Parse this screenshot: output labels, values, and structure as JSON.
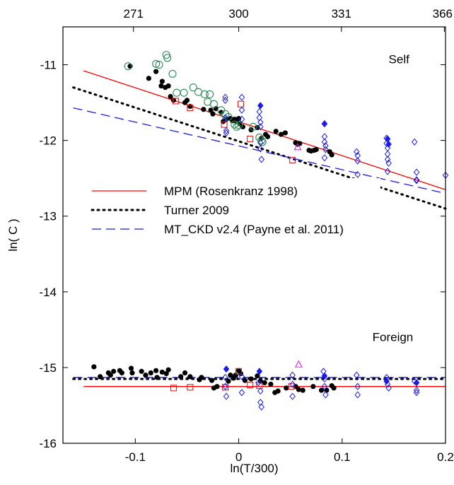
{
  "chart_data": {
    "type": "scatter",
    "xlabel": "ln(T/300)",
    "ylabel": "ln( C )",
    "xlim": [
      -0.17,
      0.2
    ],
    "ylim": [
      -16,
      -10.5
    ],
    "x_ticks": [
      -0.1,
      0,
      0.1,
      0.2
    ],
    "x_tick_labels": [
      "-0.1",
      "0",
      "0.1",
      "0.2"
    ],
    "y_ticks": [
      -11,
      -12,
      -13,
      -14,
      -15,
      -16
    ],
    "y_tick_labels": [
      "-11",
      "-12",
      "-13",
      "-14",
      "-15",
      "-16"
    ],
    "top_ticks": [
      -0.1018,
      0,
      0.0993,
      0.1989
    ],
    "top_tick_labels": [
      "271",
      "300",
      "331",
      "366"
    ],
    "annotations": [
      {
        "text": "Self",
        "x": 0.155,
        "y": -10.98
      },
      {
        "text": "Foreign",
        "x": 0.149,
        "y": -14.65
      }
    ],
    "legend_position": "middle-left",
    "grid": false,
    "colors": {
      "mpm": "#ff0000",
      "turner": "#000000",
      "mtckd": "#1a1aee",
      "green": "#2e8b57",
      "magenta": "#e020e0"
    },
    "lines": [
      {
        "name": "MPM (Rosenkranz 1998)",
        "style": "solid",
        "color": "#ff0000",
        "segments": [
          {
            "x": [
              -0.15,
              0.2
            ],
            "y": [
              -11.08,
              -12.65
            ]
          },
          {
            "x": [
              -0.15,
              0.2
            ],
            "y": [
              -15.25,
              -15.25
            ]
          }
        ]
      },
      {
        "name": "Turner 2009",
        "style": "dotted",
        "color": "#000000",
        "segments": [
          {
            "x": [
              -0.16,
              0.2
            ],
            "y": [
              -11.3,
              -12.9
            ]
          },
          {
            "x": [
              -0.16,
              0.2
            ],
            "y": [
              -15.15,
              -15.15
            ]
          }
        ]
      },
      {
        "name": "MT_CKD v2.4 (Payne et al. 2011)",
        "style": "dashed",
        "color": "#1a1aee",
        "segments": [
          {
            "x": [
              -0.16,
              0.2
            ],
            "y": [
              -11.57,
              -12.7
            ]
          },
          {
            "x": [
              -0.16,
              0.2
            ],
            "y": [
              -15.13,
              -15.13
            ]
          }
        ]
      }
    ],
    "series": [
      {
        "marker": "filled-circle",
        "color": "#000000",
        "points": [
          [
            -0.105,
            -11.02
          ],
          [
            -0.087,
            -11.18
          ],
          [
            -0.08,
            -11.09
          ],
          [
            -0.075,
            -11.28
          ],
          [
            -0.074,
            -11.22
          ],
          [
            -0.071,
            -11.3
          ],
          [
            -0.068,
            -11.28
          ],
          [
            -0.066,
            -11.42
          ],
          [
            -0.063,
            -11.47
          ],
          [
            -0.052,
            -11.5
          ],
          [
            -0.05,
            -11.47
          ],
          [
            -0.047,
            -11.55
          ],
          [
            -0.034,
            -11.59
          ],
          [
            -0.027,
            -11.6
          ],
          [
            -0.025,
            -11.65
          ],
          [
            -0.022,
            -11.58
          ],
          [
            -0.017,
            -11.63
          ],
          [
            -0.015,
            -11.75
          ],
          [
            -0.012,
            -11.72
          ],
          [
            -0.008,
            -11.71
          ],
          [
            -0.006,
            -11.74
          ],
          [
            -0.004,
            -11.72
          ],
          [
            -0.002,
            -11.75
          ],
          [
            0.0,
            -11.71
          ],
          [
            0.001,
            -11.78
          ],
          [
            0.004,
            -11.82
          ],
          [
            0.012,
            -11.86
          ],
          [
            0.018,
            -11.83
          ],
          [
            0.022,
            -11.97
          ],
          [
            0.026,
            -11.92
          ],
          [
            0.028,
            -11.95
          ],
          [
            0.036,
            -11.88
          ],
          [
            0.041,
            -11.92
          ],
          [
            0.045,
            -11.9
          ],
          [
            0.055,
            -12.03
          ],
          [
            0.057,
            -12.05
          ],
          [
            0.059,
            -12.04
          ],
          [
            0.068,
            -12.13
          ],
          [
            0.07,
            -12.14
          ],
          [
            0.073,
            -12.13
          ],
          [
            0.075,
            -12.12
          ],
          [
            0.088,
            -12.15
          ],
          [
            0.09,
            -12.19
          ],
          [
            -0.14,
            -14.99
          ],
          [
            -0.134,
            -15.12
          ],
          [
            -0.126,
            -15.07
          ],
          [
            -0.124,
            -15.1
          ],
          [
            -0.121,
            -15.05
          ],
          [
            -0.115,
            -15.04
          ],
          [
            -0.113,
            -15.07
          ],
          [
            -0.104,
            -15.01
          ],
          [
            -0.103,
            -15.07
          ],
          [
            -0.094,
            -15.05
          ],
          [
            -0.09,
            -15.1
          ],
          [
            -0.085,
            -15.07
          ],
          [
            -0.08,
            -15.04
          ],
          [
            -0.079,
            -15.13
          ],
          [
            -0.074,
            -15.06
          ],
          [
            -0.07,
            -15.08
          ],
          [
            -0.068,
            -15.03
          ],
          [
            -0.056,
            -15.12
          ],
          [
            -0.052,
            -15.07
          ],
          [
            -0.047,
            -15.12
          ],
          [
            -0.038,
            -15.16
          ],
          [
            -0.036,
            -15.13
          ],
          [
            -0.026,
            -15.17
          ],
          [
            -0.024,
            -15.27
          ],
          [
            -0.021,
            -15.25
          ],
          [
            -0.01,
            -15.18
          ],
          [
            -0.008,
            -15.1
          ],
          [
            -0.005,
            -15.14
          ],
          [
            -0.003,
            -15.1
          ],
          [
            0.0,
            -15.04
          ],
          [
            0.002,
            -15.08
          ],
          [
            0.006,
            -15.17
          ],
          [
            0.012,
            -15.15
          ],
          [
            0.018,
            -15.11
          ],
          [
            0.021,
            -15.18
          ],
          [
            0.025,
            -15.2
          ],
          [
            0.031,
            -15.22
          ],
          [
            0.035,
            -15.33
          ],
          [
            0.038,
            -15.31
          ],
          [
            0.046,
            -15.27
          ],
          [
            0.055,
            -15.25
          ],
          [
            0.058,
            -15.29
          ],
          [
            0.062,
            -15.3
          ],
          [
            0.072,
            -15.25
          ],
          [
            0.08,
            -15.3
          ],
          [
            0.085,
            -15.3
          ],
          [
            0.09,
            -15.24
          ],
          [
            0.092,
            -15.27
          ]
        ]
      },
      {
        "marker": "open-circle",
        "color": "#2e8b57",
        "points": [
          [
            -0.107,
            -11.02
          ],
          [
            -0.08,
            -10.99
          ],
          [
            -0.077,
            -11.0
          ],
          [
            -0.07,
            -10.87
          ],
          [
            -0.069,
            -10.91
          ],
          [
            -0.064,
            -11.12
          ],
          [
            -0.06,
            -11.37
          ],
          [
            -0.053,
            -11.37
          ],
          [
            -0.044,
            -11.3
          ],
          [
            -0.039,
            -11.36
          ],
          [
            -0.033,
            -11.39
          ],
          [
            -0.03,
            -11.49
          ],
          [
            -0.028,
            -11.39
          ],
          [
            -0.024,
            -11.52
          ],
          [
            -0.017,
            -11.6
          ],
          [
            -0.013,
            -11.65
          ],
          [
            -0.01,
            -11.69
          ],
          [
            -0.004,
            -11.79
          ],
          [
            -0.002,
            -11.82
          ],
          [
            0.0,
            -11.8
          ],
          [
            0.014,
            -11.82
          ],
          [
            0.02,
            -11.96
          ],
          [
            0.022,
            -12.0
          ],
          [
            0.023,
            -12.02
          ]
        ]
      },
      {
        "marker": "open-square",
        "color": "#e02020",
        "points": [
          [
            -0.061,
            -11.48
          ],
          [
            -0.047,
            -11.57
          ],
          [
            -0.014,
            -11.79
          ],
          [
            0.002,
            -11.52
          ],
          [
            0.011,
            -11.98
          ],
          [
            0.052,
            -12.26
          ],
          [
            -0.063,
            -15.27
          ],
          [
            -0.047,
            -15.26
          ],
          [
            -0.013,
            -15.26
          ],
          [
            0.0,
            -15.05
          ],
          [
            0.011,
            -15.23
          ],
          [
            0.02,
            -15.24
          ],
          [
            0.051,
            -15.25
          ]
        ]
      },
      {
        "marker": "open-triangle",
        "color": "#e020e0",
        "points": [
          [
            0.057,
            -12.09
          ],
          [
            0.058,
            -14.96
          ]
        ]
      },
      {
        "marker": "open-diamond",
        "color": "#1a1aee",
        "points": [
          [
            -0.013,
            -11.43
          ],
          [
            -0.013,
            -11.47
          ],
          [
            -0.013,
            -11.7
          ],
          [
            -0.012,
            -11.87
          ],
          [
            -0.012,
            -11.9
          ],
          [
            -0.013,
            -12.88
          ],
          [
            0.003,
            -11.43
          ],
          [
            0.003,
            -11.6
          ],
          [
            0.003,
            -11.72
          ],
          [
            0.02,
            -11.62
          ],
          [
            0.02,
            -11.7
          ],
          [
            0.021,
            -11.76
          ],
          [
            0.021,
            -11.82
          ],
          [
            0.021,
            -12.03
          ],
          [
            0.021,
            -12.11
          ],
          [
            0.022,
            -12.25
          ],
          [
            0.083,
            -11.78
          ],
          [
            0.083,
            -11.95
          ],
          [
            0.083,
            -12.02
          ],
          [
            0.084,
            -12.07
          ],
          [
            0.084,
            -12.12
          ],
          [
            0.083,
            -12.23
          ],
          [
            0.114,
            -12.15
          ],
          [
            0.115,
            -12.2
          ],
          [
            0.115,
            -12.27
          ],
          [
            0.115,
            -12.45
          ],
          [
            0.143,
            -11.97
          ],
          [
            0.143,
            -12.04
          ],
          [
            0.144,
            -12.1
          ],
          [
            0.144,
            -12.18
          ],
          [
            0.144,
            -12.25
          ],
          [
            0.145,
            -12.3
          ],
          [
            0.144,
            -12.41
          ],
          [
            0.17,
            -12.02
          ],
          [
            0.172,
            -12.42
          ],
          [
            0.172,
            -12.52
          ],
          [
            0.172,
            -12.53
          ],
          [
            0.2,
            -12.46
          ],
          [
            -0.013,
            -15.13
          ],
          [
            -0.013,
            -15.25
          ],
          [
            -0.012,
            -15.38
          ],
          [
            0.003,
            -15.12
          ],
          [
            0.003,
            -15.33
          ],
          [
            0.019,
            -15.2
          ],
          [
            0.021,
            -15.31
          ],
          [
            0.021,
            -15.46
          ],
          [
            0.022,
            -15.52
          ],
          [
            0.052,
            -15.1
          ],
          [
            0.052,
            -15.22
          ],
          [
            0.052,
            -15.38
          ],
          [
            0.082,
            -15.05
          ],
          [
            0.083,
            -15.15
          ],
          [
            0.083,
            -15.25
          ],
          [
            0.084,
            -15.36
          ],
          [
            0.114,
            -15.1
          ],
          [
            0.115,
            -15.25
          ],
          [
            0.115,
            -15.36
          ],
          [
            0.143,
            -15.13
          ],
          [
            0.144,
            -15.22
          ],
          [
            0.145,
            -15.27
          ],
          [
            0.17,
            -15.18
          ],
          [
            0.172,
            -15.3
          ],
          [
            0.172,
            -15.33
          ]
        ]
      },
      {
        "marker": "filled-diamond",
        "color": "#1a1aee",
        "points": [
          [
            0.021,
            -11.54
          ],
          [
            0.083,
            -11.78
          ],
          [
            0.144,
            -11.98
          ],
          [
            0.145,
            -12.05
          ],
          [
            -0.012,
            -15.02
          ],
          [
            0.02,
            -15.05
          ],
          [
            0.083,
            -15.11
          ],
          [
            0.143,
            -15.18
          ],
          [
            0.172,
            -15.2
          ]
        ]
      }
    ]
  }
}
